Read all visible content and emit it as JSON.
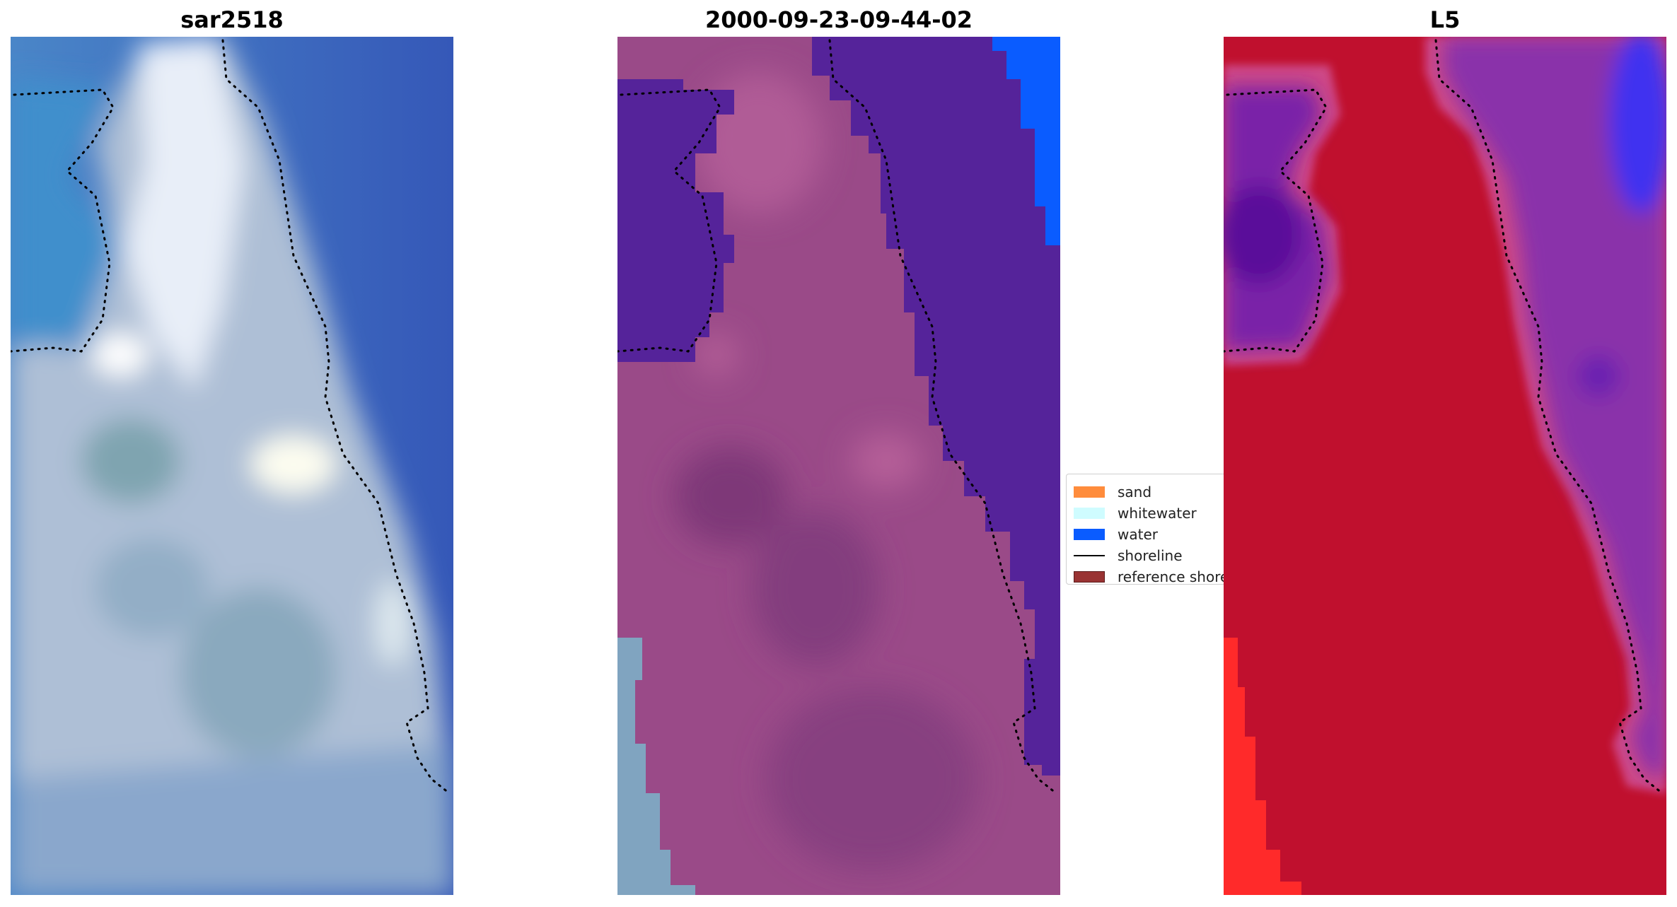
{
  "panels": [
    {
      "title": "sar2518",
      "kind": "rgb-image",
      "colors": {
        "land": "#b8c8de",
        "sea": "#3c6fbf",
        "bright": "#f2f6ff"
      }
    },
    {
      "title": "2000-09-23-09-44-02",
      "kind": "classified-image",
      "colors": {
        "land": "#a04c8c",
        "water": "#55239a",
        "deep": "#0a5cff",
        "sandy": "#85a8c8"
      }
    },
    {
      "title": "L5",
      "kind": "index-image",
      "colors": {
        "land": "#c0102e",
        "halo": "#d0407e",
        "water": "#7a24a8",
        "deep": "#3d3bff",
        "bright_red": "#ff2020"
      }
    }
  ],
  "legend": {
    "items": [
      {
        "label": "sand",
        "type": "patch",
        "color": "#ff8c3c"
      },
      {
        "label": "whitewater",
        "type": "patch",
        "color": "#cffcff"
      },
      {
        "label": "water",
        "type": "patch",
        "color": "#0a5cff"
      },
      {
        "label": "shoreline",
        "type": "line",
        "color": "#000000"
      },
      {
        "label": "reference shoreline",
        "type": "patch",
        "color": "#993333"
      }
    ]
  }
}
